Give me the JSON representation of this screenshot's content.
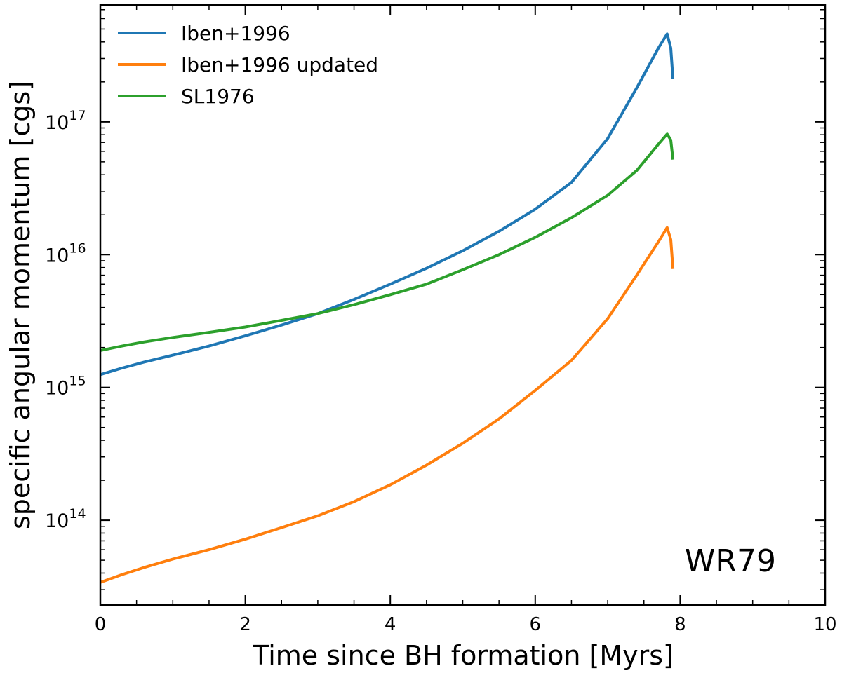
{
  "chart_data": {
    "type": "line",
    "title": "",
    "xlabel": "Time since BH formation [Myrs]",
    "ylabel": "specific angular momentum [cgs]",
    "xlim": [
      0,
      10
    ],
    "ylim": [
      23000000000000.0,
      7.6e+17
    ],
    "yscale": "log",
    "grid": false,
    "legend_position": "top-left",
    "annotation": "WR79",
    "x_ticks": [
      {
        "value": 0,
        "label": "0"
      },
      {
        "value": 2,
        "label": "2"
      },
      {
        "value": 4,
        "label": "4"
      },
      {
        "value": 6,
        "label": "6"
      },
      {
        "value": 8,
        "label": "8"
      },
      {
        "value": 10,
        "label": "10"
      }
    ],
    "y_ticks": [
      {
        "value": 100000000000000.0,
        "base": "10",
        "exp": "14"
      },
      {
        "value": 1000000000000000.0,
        "base": "10",
        "exp": "15"
      },
      {
        "value": 1e+16,
        "base": "10",
        "exp": "16"
      },
      {
        "value": 1e+17,
        "base": "10",
        "exp": "17"
      }
    ],
    "series": [
      {
        "name": "Iben+1996",
        "color": "#1f77b4",
        "x": [
          0,
          0.3,
          0.6,
          1.0,
          1.5,
          2.0,
          2.5,
          3.0,
          3.5,
          4.0,
          4.5,
          5.0,
          5.5,
          6.0,
          6.5,
          7.0,
          7.4,
          7.7,
          7.82,
          7.87,
          7.9
        ],
        "y": [
          1250000000000000.0,
          1400000000000000.0,
          1550000000000000.0,
          1750000000000000.0,
          2050000000000000.0,
          2450000000000000.0,
          2950000000000000.0,
          3600000000000000.0,
          4600000000000000.0,
          6000000000000000.0,
          7900000000000000.0,
          1.07e+16,
          1.5e+16,
          2.2e+16,
          3.5e+16,
          7.5e+16,
          1.8e+17,
          3.6e+17,
          4.6e+17,
          3.6e+17,
          2.1e+17
        ]
      },
      {
        "name": "Iben+1996 updated",
        "color": "#ff7f0e",
        "x": [
          0,
          0.3,
          0.6,
          1.0,
          1.5,
          2.0,
          2.5,
          3.0,
          3.5,
          4.0,
          4.5,
          5.0,
          5.5,
          6.0,
          6.5,
          7.0,
          7.4,
          7.7,
          7.82,
          7.87,
          7.9
        ],
        "y": [
          34000000000000.0,
          39000000000000.0,
          44000000000000.0,
          51000000000000.0,
          60000000000000.0,
          72000000000000.0,
          88000000000000.0,
          108000000000000.0,
          138000000000000.0,
          185000000000000.0,
          260000000000000.0,
          380000000000000.0,
          580000000000000.0,
          950000000000000.0,
          1600000000000000.0,
          3300000000000000.0,
          7000000000000000.0,
          1.25e+16,
          1.6e+16,
          1.3e+16,
          7800000000000000.0
        ]
      },
      {
        "name": "SL1976",
        "color": "#2ca02c",
        "x": [
          0,
          0.3,
          0.6,
          1.0,
          1.5,
          2.0,
          2.5,
          3.0,
          3.5,
          4.0,
          4.5,
          5.0,
          5.5,
          6.0,
          6.5,
          7.0,
          7.4,
          7.7,
          7.82,
          7.87,
          7.9
        ],
        "y": [
          1900000000000000.0,
          2050000000000000.0,
          2200000000000000.0,
          2380000000000000.0,
          2600000000000000.0,
          2850000000000000.0,
          3200000000000000.0,
          3600000000000000.0,
          4200000000000000.0,
          5000000000000000.0,
          6000000000000000.0,
          7700000000000000.0,
          1e+16,
          1.35e+16,
          1.9e+16,
          2.8e+16,
          4.3e+16,
          6.8e+16,
          8.1e+16,
          7.3e+16,
          5.2e+16
        ]
      }
    ]
  }
}
